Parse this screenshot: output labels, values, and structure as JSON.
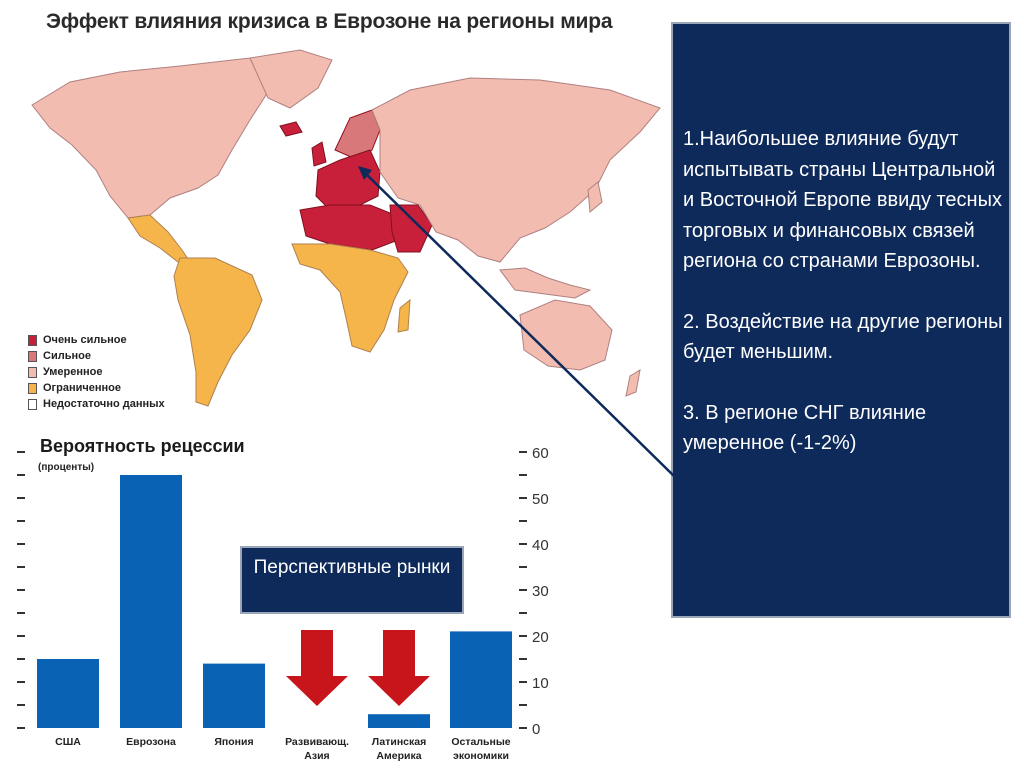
{
  "map": {
    "title": "Эффект влияния кризиса в Еврозоне на регионы мира",
    "legend": [
      {
        "label": "Очень сильное",
        "color": "#c8203a"
      },
      {
        "label": "Сильное",
        "color": "#d9787a"
      },
      {
        "label": "Умеренное",
        "color": "#f2bcb0"
      },
      {
        "label": "Ограниченное",
        "color": "#f5b54a"
      },
      {
        "label": "Недостаточно данных",
        "color": "#ffffff"
      }
    ]
  },
  "info_panel": {
    "point1": "1.Наибольшее влияние будут испытывать  страны Центральной и Восточной Европе ввиду тесных торговых и финансовых связей региона со странами Еврозоны.",
    "point2": "2. Воздействие на другие регионы будет меньшим.",
    "point3": "3. В регионе СНГ влияние умеренное (-1-2%)"
  },
  "callout": {
    "label": "Перспективные рынки"
  },
  "colors": {
    "panel": "#0e2a5b",
    "bar": "#0a62b4",
    "arrow": "#c8151b"
  },
  "chart_data": {
    "type": "bar",
    "title": "Вероятность рецессии",
    "ylabel": "(проценты)",
    "categories": [
      [
        "США"
      ],
      [
        "Еврозона"
      ],
      [
        "Япония"
      ],
      [
        "Развивающ.",
        "Азия"
      ],
      [
        "Латинская",
        "Америка"
      ],
      [
        "Остальные",
        "экономики"
      ]
    ],
    "values": [
      15,
      55,
      14,
      0,
      3,
      21
    ],
    "ylim": [
      0,
      60
    ],
    "yticks": [
      0,
      10,
      20,
      30,
      40,
      50,
      60
    ],
    "highlight_arrows_on": [
      3,
      4
    ],
    "axis_side": "right",
    "grid": false
  }
}
